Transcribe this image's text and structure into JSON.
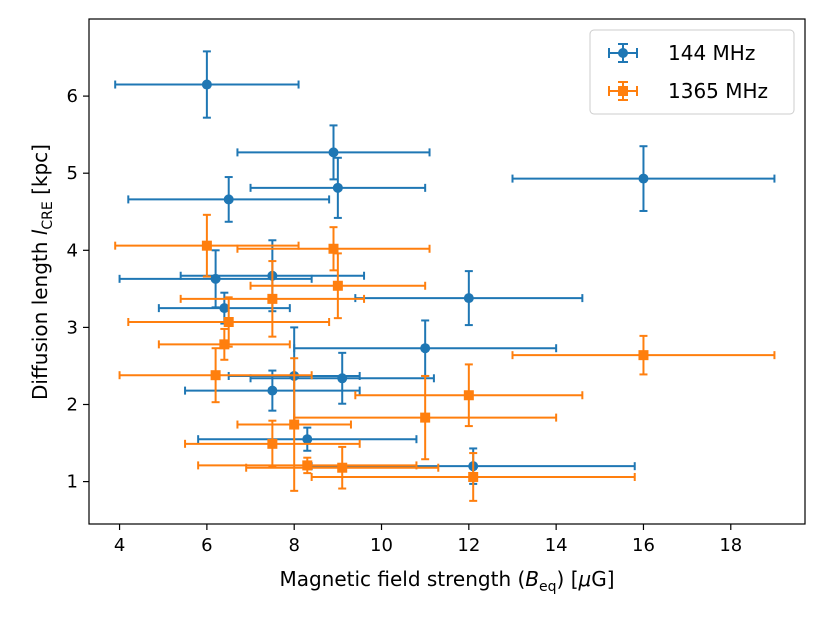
{
  "chart_data": {
    "type": "scatter",
    "title": "",
    "xlabel_parts": [
      "Magnetic field strength (",
      "B",
      "eq",
      ") [",
      "μ",
      "G]"
    ],
    "ylabel_parts": [
      "Diffusion length ",
      "l",
      "CRE",
      " [kpc]"
    ],
    "xlim": [
      3.3,
      19.7
    ],
    "ylim": [
      0.45,
      7.0
    ],
    "xticks": [
      "4",
      "6",
      "8",
      "10",
      "12",
      "14",
      "16",
      "18"
    ],
    "yticks": [
      "1",
      "2",
      "3",
      "4",
      "5",
      "6"
    ],
    "legend_position": "top-right",
    "series": [
      {
        "name": "144 MHz",
        "color": "#1f77b4",
        "marker": "circle",
        "points": [
          {
            "x": 6.0,
            "xlo": 3.9,
            "xhi": 8.1,
            "y": 6.15,
            "ylo": 5.72,
            "yhi": 6.58
          },
          {
            "x": 8.9,
            "xlo": 6.7,
            "xhi": 11.1,
            "y": 5.27,
            "ylo": 4.92,
            "yhi": 5.62
          },
          {
            "x": 9.0,
            "xlo": 7.0,
            "xhi": 11.0,
            "y": 4.81,
            "ylo": 4.42,
            "yhi": 5.2
          },
          {
            "x": 16.0,
            "xlo": 13.0,
            "xhi": 19.0,
            "y": 4.93,
            "ylo": 4.51,
            "yhi": 5.35
          },
          {
            "x": 6.5,
            "xlo": 4.2,
            "xhi": 8.8,
            "y": 4.66,
            "ylo": 4.37,
            "yhi": 4.95
          },
          {
            "x": 7.5,
            "xlo": 5.4,
            "xhi": 9.6,
            "y": 3.67,
            "ylo": 3.21,
            "yhi": 4.13
          },
          {
            "x": 6.2,
            "xlo": 4.0,
            "xhi": 8.4,
            "y": 3.63,
            "ylo": 3.26,
            "yhi": 4.0
          },
          {
            "x": 12.0,
            "xlo": 9.4,
            "xhi": 14.6,
            "y": 3.38,
            "ylo": 3.03,
            "yhi": 3.73
          },
          {
            "x": 6.4,
            "xlo": 4.9,
            "xhi": 7.9,
            "y": 3.25,
            "ylo": 3.05,
            "yhi": 3.45
          },
          {
            "x": 11.0,
            "xlo": 8.0,
            "xhi": 14.0,
            "y": 2.73,
            "ylo": 2.37,
            "yhi": 3.09
          },
          {
            "x": 8.0,
            "xlo": 6.5,
            "xhi": 9.5,
            "y": 2.37,
            "ylo": 1.74,
            "yhi": 3.0
          },
          {
            "x": 9.1,
            "xlo": 7.0,
            "xhi": 11.2,
            "y": 2.34,
            "ylo": 2.01,
            "yhi": 2.67
          },
          {
            "x": 7.5,
            "xlo": 5.5,
            "xhi": 9.5,
            "y": 2.18,
            "ylo": 1.92,
            "yhi": 2.44
          },
          {
            "x": 8.3,
            "xlo": 5.8,
            "xhi": 10.8,
            "y": 1.55,
            "ylo": 1.4,
            "yhi": 1.7
          },
          {
            "x": 12.1,
            "xlo": 8.4,
            "xhi": 15.8,
            "y": 1.2,
            "ylo": 0.97,
            "yhi": 1.43
          }
        ]
      },
      {
        "name": "1365 MHz",
        "color": "#ff7f0e",
        "marker": "square",
        "points": [
          {
            "x": 6.0,
            "xlo": 3.9,
            "xhi": 8.1,
            "y": 4.06,
            "ylo": 3.66,
            "yhi": 4.46
          },
          {
            "x": 8.9,
            "xlo": 6.7,
            "xhi": 11.1,
            "y": 4.02,
            "ylo": 3.74,
            "yhi": 4.3
          },
          {
            "x": 9.0,
            "xlo": 7.0,
            "xhi": 11.0,
            "y": 3.54,
            "ylo": 3.12,
            "yhi": 3.96
          },
          {
            "x": 7.5,
            "xlo": 5.4,
            "xhi": 9.6,
            "y": 3.37,
            "ylo": 2.88,
            "yhi": 3.86
          },
          {
            "x": 6.5,
            "xlo": 4.2,
            "xhi": 8.8,
            "y": 3.07,
            "ylo": 2.75,
            "yhi": 3.39
          },
          {
            "x": 6.4,
            "xlo": 4.9,
            "xhi": 7.9,
            "y": 2.78,
            "ylo": 2.58,
            "yhi": 2.98
          },
          {
            "x": 16.0,
            "xlo": 13.0,
            "xhi": 19.0,
            "y": 2.64,
            "ylo": 2.39,
            "yhi": 2.89
          },
          {
            "x": 6.2,
            "xlo": 4.0,
            "xhi": 8.4,
            "y": 2.38,
            "ylo": 2.03,
            "yhi": 2.73
          },
          {
            "x": 12.0,
            "xlo": 9.4,
            "xhi": 14.6,
            "y": 2.12,
            "ylo": 1.72,
            "yhi": 2.52
          },
          {
            "x": 11.0,
            "xlo": 8.0,
            "xhi": 14.0,
            "y": 1.83,
            "ylo": 1.29,
            "yhi": 2.37
          },
          {
            "x": 8.0,
            "xlo": 6.7,
            "xhi": 9.3,
            "y": 1.74,
            "ylo": 0.88,
            "yhi": 2.6
          },
          {
            "x": 7.5,
            "xlo": 5.5,
            "xhi": 9.5,
            "y": 1.49,
            "ylo": 1.19,
            "yhi": 1.79
          },
          {
            "x": 8.3,
            "xlo": 5.8,
            "xhi": 10.8,
            "y": 1.21,
            "ylo": 1.11,
            "yhi": 1.31
          },
          {
            "x": 9.1,
            "xlo": 6.9,
            "xhi": 11.3,
            "y": 1.18,
            "ylo": 0.91,
            "yhi": 1.45
          },
          {
            "x": 12.1,
            "xlo": 8.4,
            "xhi": 15.8,
            "y": 1.06,
            "ylo": 0.75,
            "yhi": 1.37
          }
        ]
      }
    ]
  }
}
